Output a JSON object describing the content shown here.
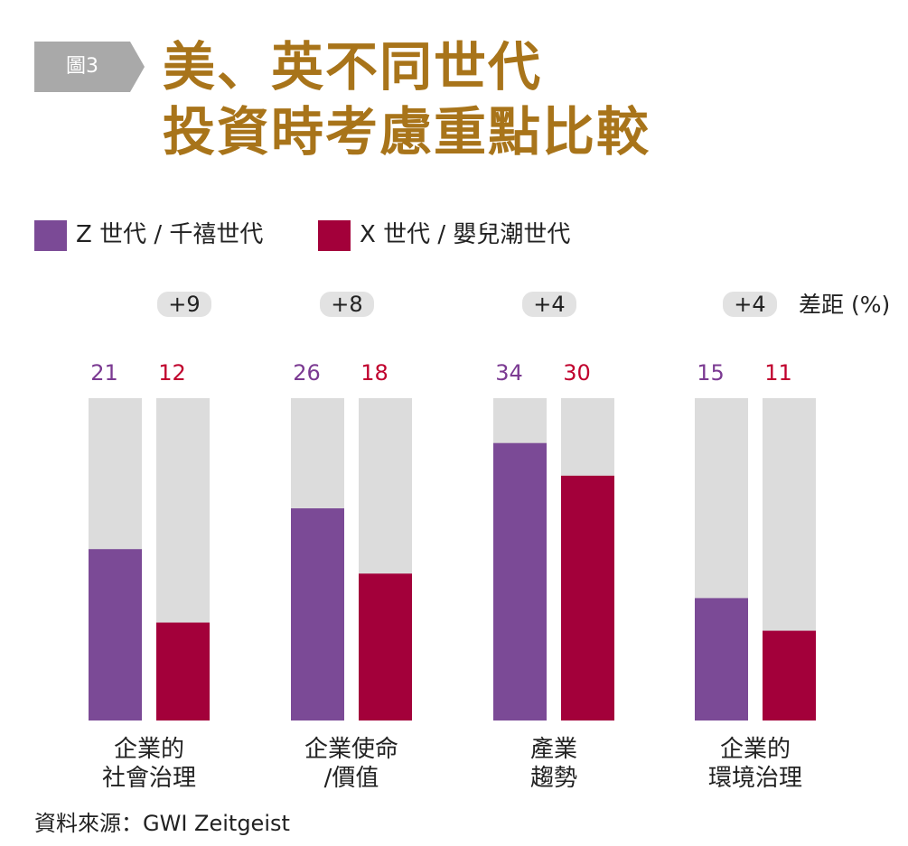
{
  "figure_label": "圖3",
  "title_lines": [
    "美、英不同世代",
    "投資時考慮重點比較"
  ],
  "source": "資料來源：GWI Zeitgeist",
  "colors": {
    "series_z": "#7b4a96",
    "series_x": "#a3003a",
    "track": "#dcdcdc",
    "title": "#a8741a",
    "badge": "#a9a9a9",
    "diff_pill": "#e2e2e2",
    "z_value_text": "#7b3a92",
    "x_value_text": "#c0002d"
  },
  "chart_data": {
    "type": "bar",
    "categories": [
      [
        "企業的",
        "社會治理"
      ],
      [
        "企業使命",
        "/價值"
      ],
      [
        "產業",
        "趨勢"
      ],
      [
        "企業的",
        "環境治理"
      ]
    ],
    "series": [
      {
        "name": "Z 世代 / 千禧世代",
        "values": [
          21,
          26,
          34,
          15
        ]
      },
      {
        "name": "X 世代 / 嬰兒潮世代",
        "values": [
          12,
          18,
          30,
          11
        ]
      }
    ],
    "differences": [
      "+9",
      "+8",
      "+4",
      "+4"
    ],
    "difference_label": "差距 (%)",
    "ylim": [
      0,
      39.5
    ],
    "legend_position": "top-left",
    "grid": false
  }
}
